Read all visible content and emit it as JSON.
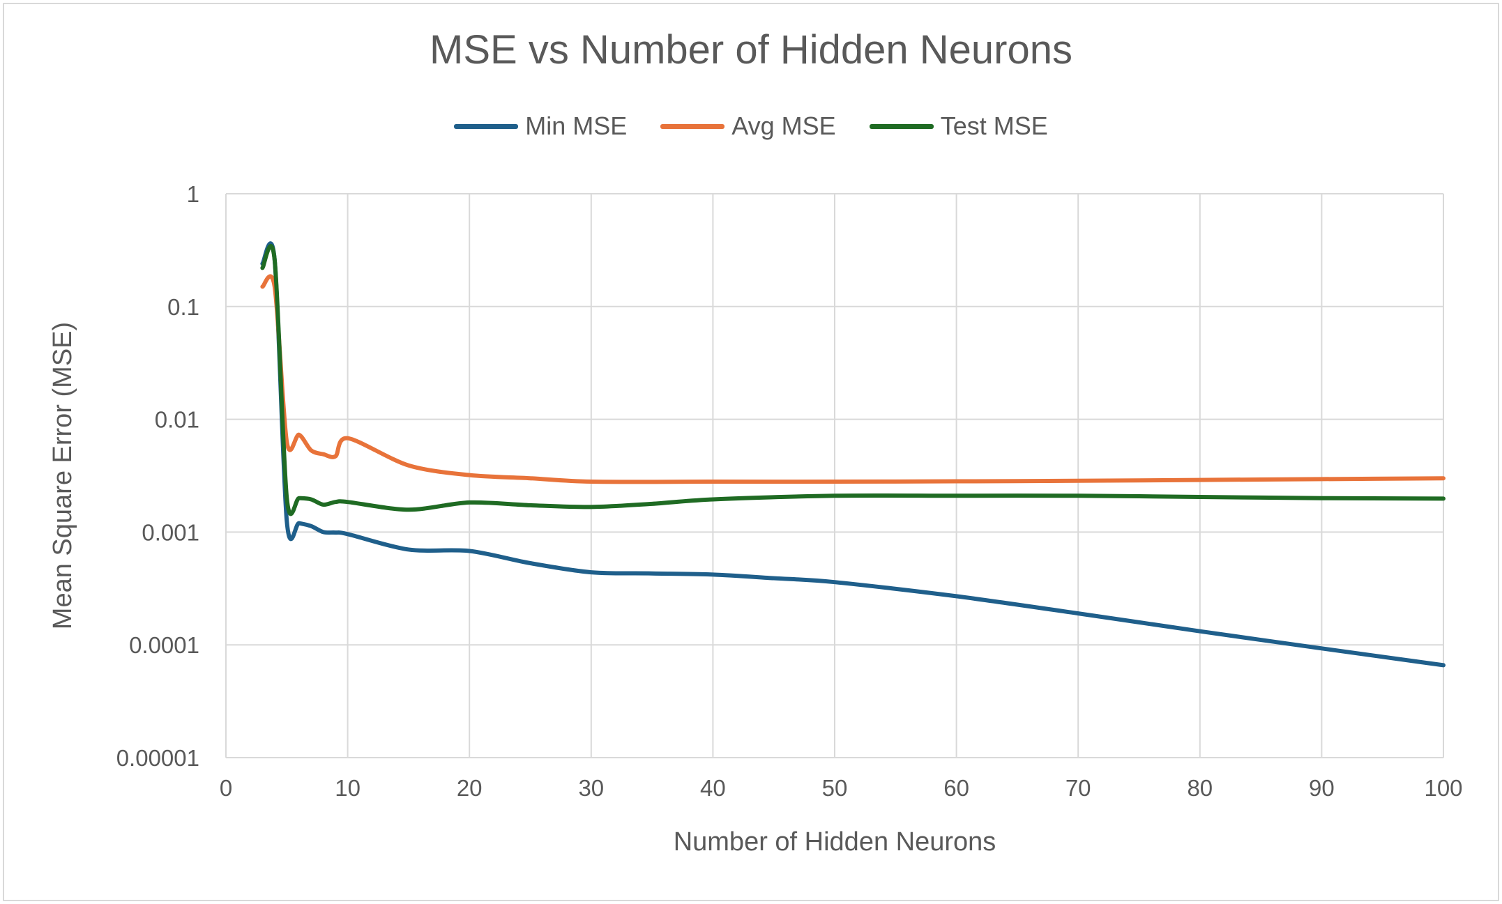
{
  "chart_data": {
    "type": "line",
    "title": "MSE vs Number of Hidden Neurons",
    "xlabel": "Number of Hidden Neurons",
    "ylabel": "Mean Square Error (MSE)",
    "xlim": [
      0,
      100
    ],
    "ylim": [
      1e-05,
      1
    ],
    "yscale": "log",
    "grid": true,
    "legend_position": "top",
    "x_ticks": [
      "0",
      "10",
      "20",
      "30",
      "40",
      "50",
      "60",
      "70",
      "80",
      "90",
      "100"
    ],
    "y_ticks": [
      "1",
      "0.1",
      "0.01",
      "0.001",
      "0.0001",
      "0.00001"
    ],
    "series": [
      {
        "name": "Min MSE",
        "color": "#1f5f8b",
        "x": [
          3,
          4,
          5,
          6,
          7,
          8,
          9,
          10,
          15,
          20,
          25,
          30,
          35,
          40,
          45,
          50,
          60,
          70,
          80,
          90,
          100
        ],
        "y": [
          0.24,
          0.26,
          0.00125,
          0.0012,
          0.00113,
          0.001,
          0.00099,
          0.00096,
          0.0007,
          0.00068,
          0.00053,
          0.00044,
          0.00043,
          0.00042,
          0.00039,
          0.00036,
          0.00027,
          0.00019,
          0.000132,
          9.3e-05,
          6.6e-05
        ]
      },
      {
        "name": "Avg MSE",
        "color": "#e8733a",
        "x": [
          3,
          4,
          5,
          6,
          7,
          8,
          9,
          10,
          15,
          20,
          25,
          30,
          40,
          50,
          60,
          70,
          80,
          90,
          100
        ],
        "y": [
          0.15,
          0.15,
          0.0063,
          0.0073,
          0.0053,
          0.0049,
          0.0047,
          0.0068,
          0.0039,
          0.0032,
          0.003,
          0.0028,
          0.0028,
          0.0028,
          0.00282,
          0.00285,
          0.0029,
          0.00295,
          0.003
        ]
      },
      {
        "name": "Test MSE",
        "color": "#1f6b23",
        "x": [
          3,
          4,
          5,
          6,
          7,
          8,
          9,
          10,
          15,
          20,
          25,
          30,
          35,
          40,
          50,
          60,
          70,
          80,
          90,
          100
        ],
        "y": [
          0.22,
          0.26,
          0.002,
          0.002,
          0.00195,
          0.00175,
          0.00185,
          0.00185,
          0.00158,
          0.00183,
          0.00173,
          0.00167,
          0.00178,
          0.00195,
          0.0021,
          0.0021,
          0.0021,
          0.00205,
          0.002,
          0.00198
        ]
      }
    ]
  }
}
